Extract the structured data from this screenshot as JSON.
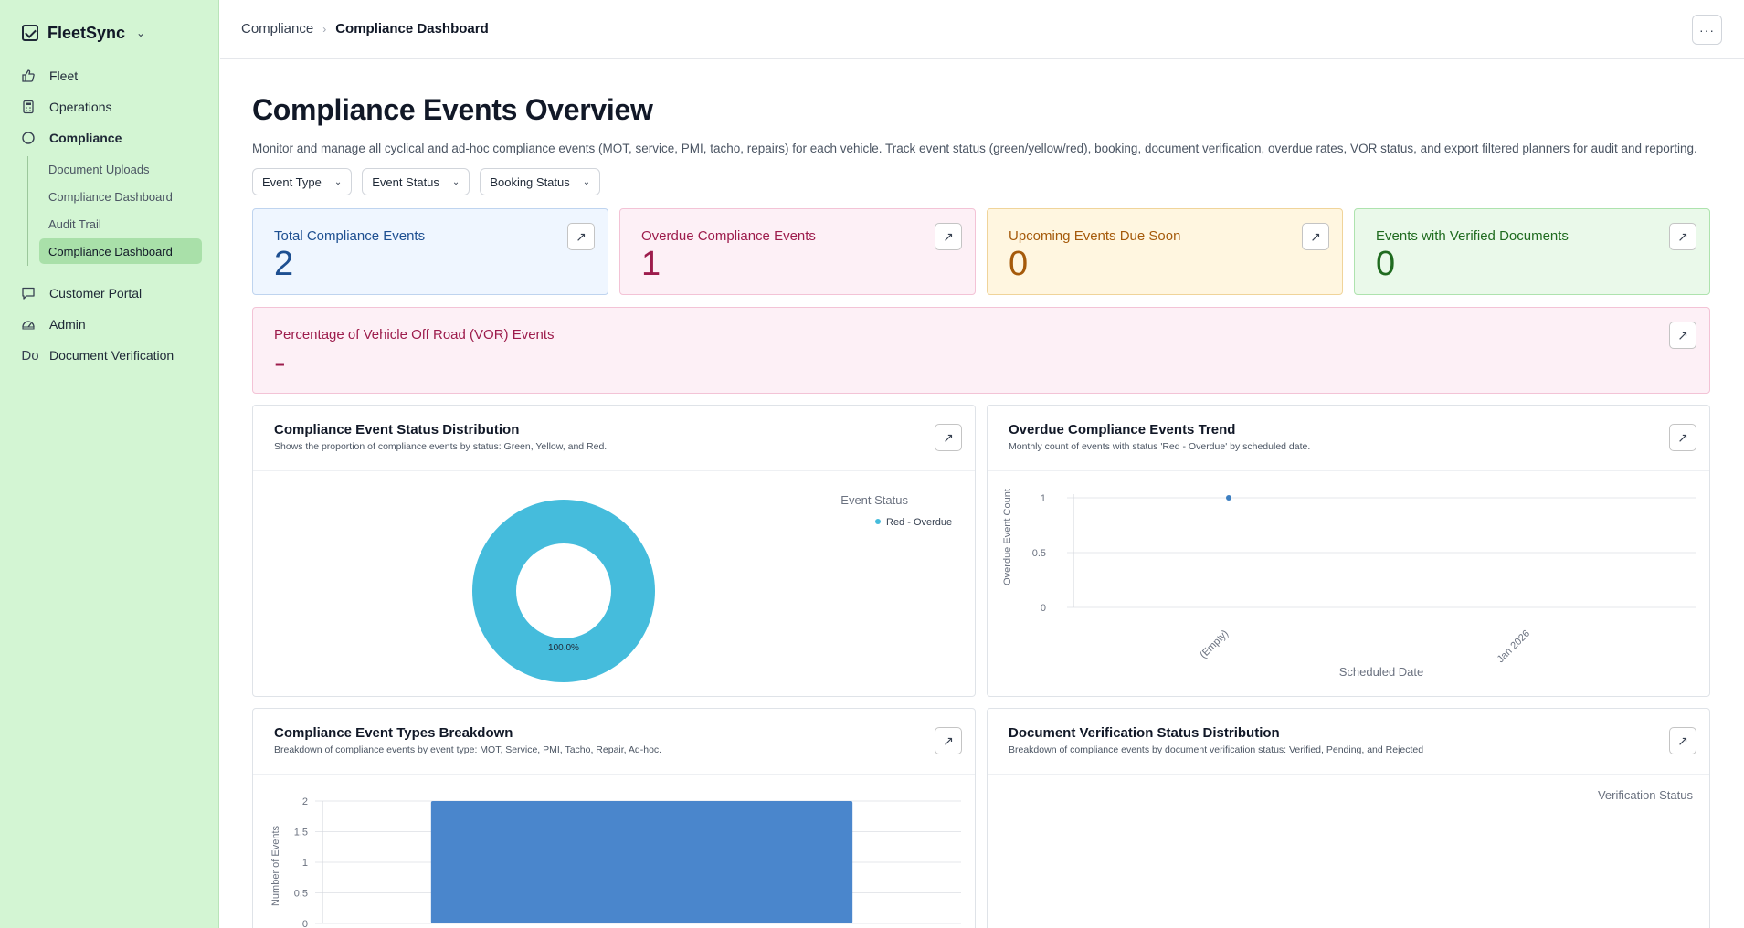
{
  "app": {
    "name": "FleetSync"
  },
  "sidebar": {
    "items": [
      {
        "label": "Fleet",
        "icon": "thumbs-up-icon"
      },
      {
        "label": "Operations",
        "icon": "calculator-icon"
      },
      {
        "label": "Compliance",
        "icon": "circle-icon"
      },
      {
        "label": "Customer Portal",
        "icon": "message-square-icon"
      },
      {
        "label": "Admin",
        "icon": "gauge-icon"
      },
      {
        "label": "Document Verification",
        "icon": "Do"
      }
    ],
    "sub_items": [
      {
        "label": "Document Uploads"
      },
      {
        "label": "Compliance Dashboard"
      },
      {
        "label": "Audit Trail"
      },
      {
        "label": "Compliance Dashboard"
      }
    ]
  },
  "breadcrumb": {
    "parent": "Compliance",
    "current": "Compliance Dashboard"
  },
  "header": {
    "more_label": "···"
  },
  "page": {
    "title": "Compliance Events Overview",
    "description": "Monitor and manage all cyclical and ad-hoc compliance events (MOT, service, PMI, tacho, repairs) for each vehicle. Track event status (green/yellow/red), booking, document verification, overdue rates, VOR status, and export filtered planners for audit and reporting."
  },
  "filters": [
    {
      "label": "Event Type"
    },
    {
      "label": "Event Status"
    },
    {
      "label": "Booking Status"
    }
  ],
  "kpis": {
    "total": {
      "title": "Total Compliance Events",
      "value": "2"
    },
    "overdue": {
      "title": "Overdue Compliance Events",
      "value": "1"
    },
    "upcoming": {
      "title": "Upcoming Events Due Soon",
      "value": "0"
    },
    "verified": {
      "title": "Events with Verified Documents",
      "value": "0"
    },
    "vor": {
      "title": "Percentage of Vehicle Off Road (VOR) Events",
      "value": "-"
    }
  },
  "arrow_glyph": "↗",
  "cards": {
    "status_dist": {
      "title": "Compliance Event Status Distribution",
      "subtitle": "Shows the proportion of compliance events by status: Green, Yellow, and Red."
    },
    "overdue_trend": {
      "title": "Overdue Compliance Events Trend",
      "subtitle": "Monthly count of events with status 'Red - Overdue' by scheduled date."
    },
    "types_breakdown": {
      "title": "Compliance Event Types Breakdown",
      "subtitle": "Breakdown of compliance events by event type: MOT, Service, PMI, Tacho, Repair, Ad-hoc."
    },
    "doc_verification": {
      "title": "Document Verification Status Distribution",
      "subtitle": "Breakdown of compliance events by document verification status: Verified, Pending, and Rejected"
    }
  },
  "colors": {
    "donut": "#45bcdc",
    "line_point": "#3d7fc1",
    "bar": "#4a86cc"
  },
  "chart_data": [
    {
      "type": "pie",
      "legend_title": "Event Status",
      "legend_position": "top-right",
      "slices": [
        {
          "label": "Red - Overdue",
          "value": 100.0,
          "display": "100.0%"
        }
      ]
    },
    {
      "type": "scatter",
      "xlabel": "Scheduled Date",
      "ylabel": "Overdue Event Count",
      "categories": [
        "(Empty)",
        "Jan 2026"
      ],
      "values": [
        1,
        null
      ],
      "yticks": [
        "0",
        "0.5",
        "1"
      ],
      "ylim": [
        0,
        1
      ],
      "grid": true
    },
    {
      "type": "bar",
      "ylabel": "Number of Events",
      "categories": [
        ""
      ],
      "values": [
        2
      ],
      "yticks": [
        "0",
        "0.5",
        "1",
        "1.5",
        "2"
      ],
      "ylim": [
        0,
        2
      ],
      "grid": true
    },
    {
      "type": "pie",
      "legend_title": "Verification Status",
      "legend_position": "top-right",
      "slices": []
    }
  ]
}
